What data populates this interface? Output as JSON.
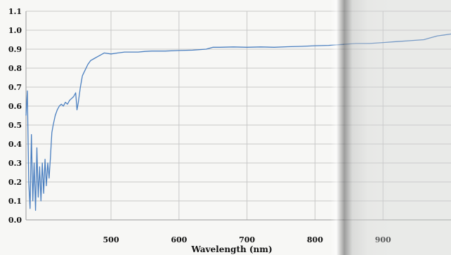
{
  "chart_data": {
    "type": "line",
    "title": "",
    "xlabel": "Wavelength (nm)",
    "ylabel": "",
    "xlim": [
      375,
      1000
    ],
    "ylim": [
      0.0,
      1.1
    ],
    "x_ticks": [
      500,
      600,
      700,
      800,
      900
    ],
    "y_ticks": [
      0.0,
      0.1,
      0.2,
      0.3,
      0.4,
      0.5,
      0.6,
      0.7,
      0.8,
      0.9,
      1.0,
      1.1
    ],
    "y_tick_labels": [
      "0.0",
      "0.1",
      "0.2",
      "0.3",
      "0.4",
      "0.5",
      "0.6",
      "0.7",
      "0.8",
      "0.9",
      "1.0",
      "1.1"
    ],
    "grid": true,
    "legend": "none",
    "colors": {
      "line": "#4a7fc0",
      "grid": "#c8c8c8",
      "axis": "#9a9a9a"
    },
    "series": [
      {
        "x": [
          375,
          377,
          379,
          381,
          383,
          385,
          387,
          389,
          391,
          393,
          395,
          397,
          399,
          401,
          403,
          405,
          407,
          409,
          411,
          413,
          415,
          418,
          421,
          424,
          427,
          430,
          433,
          436,
          439,
          442,
          445,
          448,
          450,
          452,
          455,
          458,
          462,
          466,
          470,
          475,
          480,
          490,
          500,
          510,
          520,
          530,
          540,
          550,
          560,
          580,
          600,
          620,
          640,
          650,
          660,
          680,
          700,
          720,
          740,
          760,
          780,
          800,
          820,
          840,
          860,
          880,
          900,
          920,
          940,
          960,
          970,
          980,
          990,
          1000
        ],
        "y": [
          0.55,
          0.68,
          0.2,
          0.06,
          0.45,
          0.1,
          0.3,
          0.05,
          0.38,
          0.12,
          0.28,
          0.1,
          0.3,
          0.14,
          0.32,
          0.18,
          0.3,
          0.22,
          0.33,
          0.46,
          0.5,
          0.55,
          0.58,
          0.6,
          0.61,
          0.6,
          0.62,
          0.61,
          0.63,
          0.64,
          0.65,
          0.67,
          0.58,
          0.62,
          0.7,
          0.76,
          0.79,
          0.82,
          0.84,
          0.85,
          0.86,
          0.88,
          0.875,
          0.88,
          0.885,
          0.885,
          0.885,
          0.888,
          0.89,
          0.89,
          0.893,
          0.895,
          0.9,
          0.91,
          0.91,
          0.912,
          0.91,
          0.912,
          0.91,
          0.913,
          0.915,
          0.918,
          0.92,
          0.925,
          0.93,
          0.93,
          0.935,
          0.94,
          0.945,
          0.95,
          0.96,
          0.97,
          0.975,
          0.98
        ]
      }
    ]
  }
}
